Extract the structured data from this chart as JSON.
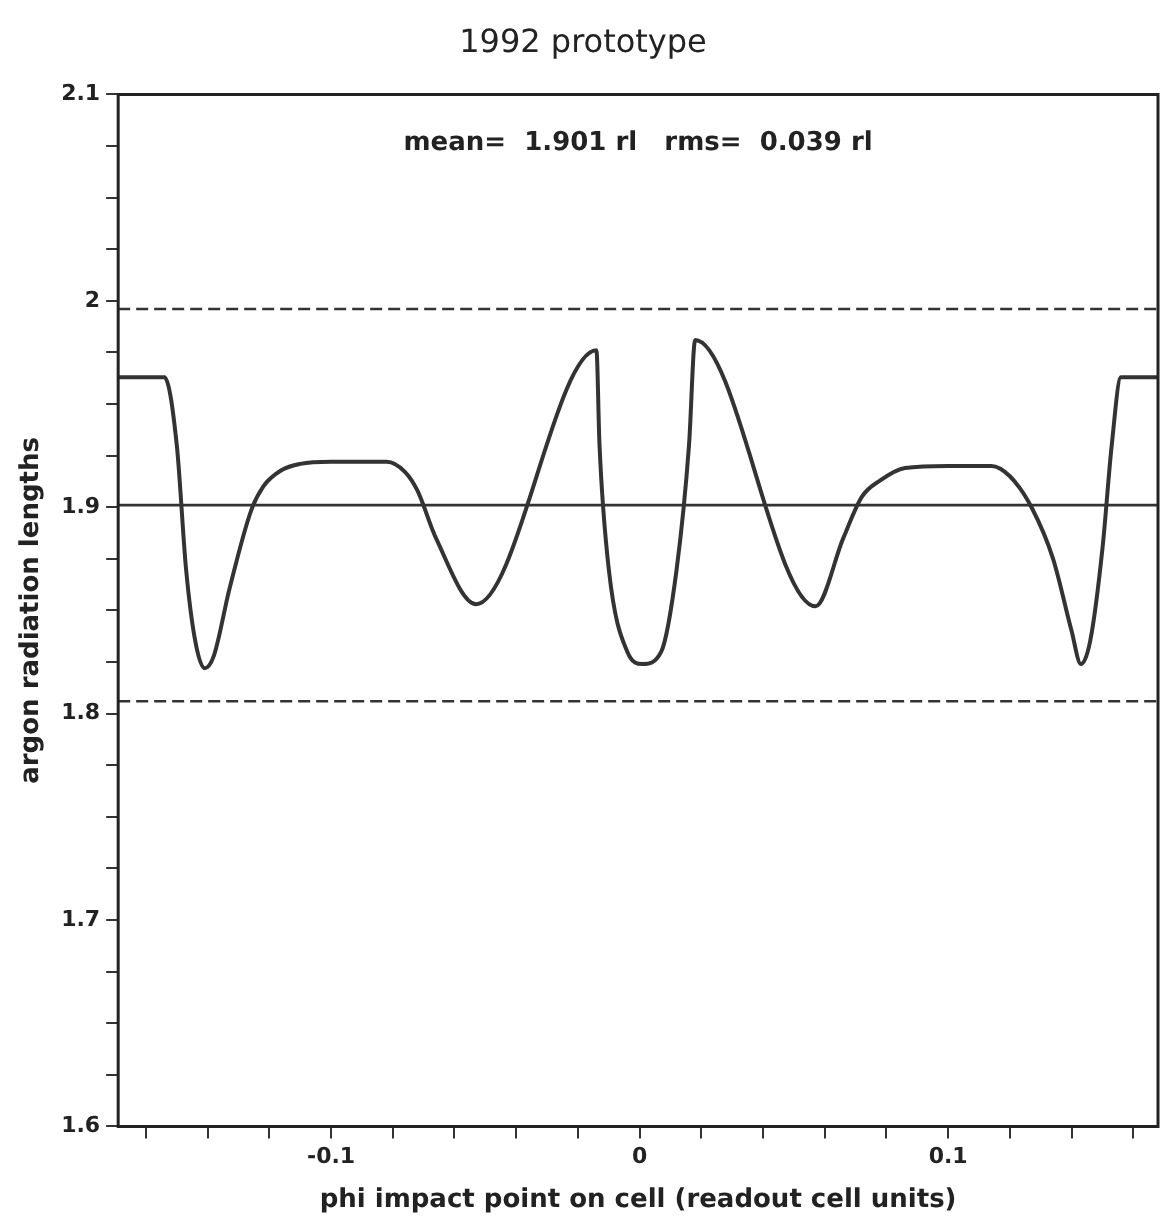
{
  "chart_data": {
    "type": "line",
    "title": "1992 prototype",
    "xlabel": "phi impact point on cell (readout cell units)",
    "ylabel": "argon radiation lengths",
    "annotations": [
      "mean=  1.901 rl   rms=  0.039 rl"
    ],
    "x": [
      -0.169,
      -0.154,
      -0.15,
      -0.147,
      -0.144,
      -0.141,
      -0.138,
      -0.133,
      -0.126,
      -0.122,
      -0.116,
      -0.11,
      -0.1,
      -0.082,
      -0.076,
      -0.072,
      -0.066,
      -0.053,
      -0.014,
      -0.013,
      -0.01,
      -0.004,
      0.001,
      0.007,
      0.012,
      0.016,
      0.018,
      0.057,
      0.066,
      0.072,
      0.078,
      0.086,
      0.1,
      0.114,
      0.12,
      0.127,
      0.134,
      0.14,
      0.143,
      0.146,
      0.15,
      0.153,
      0.156,
      0.168
    ],
    "series": [
      {
        "color": "#333333",
        "values": [
          1.963,
          1.963,
          1.93,
          1.87,
          1.835,
          1.822,
          1.828,
          1.86,
          1.898,
          1.91,
          1.918,
          1.921,
          1.922,
          1.922,
          1.917,
          1.908,
          1.885,
          1.853,
          1.976,
          1.93,
          1.87,
          1.83,
          1.824,
          1.83,
          1.87,
          1.93,
          1.981,
          1.852,
          1.885,
          1.905,
          1.913,
          1.919,
          1.92,
          1.92,
          1.915,
          1.9,
          1.875,
          1.84,
          1.824,
          1.835,
          1.88,
          1.93,
          1.963,
          1.963
        ]
      }
    ],
    "xlim": [
      -0.169,
      0.168
    ],
    "ylim": [
      1.6,
      2.1
    ],
    "xticks": [
      {
        "value": -0.16,
        "label": null
      },
      {
        "value": -0.14,
        "label": null
      },
      {
        "value": -0.12,
        "label": null
      },
      -0.1,
      {
        "value": -0.08,
        "label": null
      },
      {
        "value": -0.06,
        "label": null
      },
      {
        "value": -0.04,
        "label": null
      },
      {
        "value": -0.02,
        "label": null
      },
      0,
      {
        "value": 0.02,
        "label": null
      },
      {
        "value": 0.04,
        "label": null
      },
      {
        "value": 0.06,
        "label": null
      },
      {
        "value": 0.08,
        "label": null
      },
      0.1,
      {
        "value": 0.12,
        "label": null
      },
      {
        "value": 0.14,
        "label": null
      },
      {
        "value": 0.16,
        "label": null
      }
    ],
    "yticks": [
      1.6,
      {
        "value": 1.625,
        "label": null
      },
      {
        "value": 1.65,
        "label": null
      },
      {
        "value": 1.675,
        "label": null
      },
      1.7,
      {
        "value": 1.725,
        "label": null
      },
      {
        "value": 1.75,
        "label": null
      },
      {
        "value": 1.775,
        "label": null
      },
      1.8,
      {
        "value": 1.825,
        "label": null
      },
      {
        "value": 1.85,
        "label": null
      },
      {
        "value": 1.875,
        "label": null
      },
      1.9,
      {
        "value": 1.925,
        "label": null
      },
      {
        "value": 1.95,
        "label": null
      },
      {
        "value": 1.975,
        "label": null
      },
      2,
      {
        "value": 2.025,
        "label": null
      },
      {
        "value": 2.05,
        "label": null
      },
      {
        "value": 2.075,
        "label": null
      },
      2.1
    ],
    "ref_lines": [
      {
        "axis": "y",
        "value": 1.996,
        "line_style": "dashed"
      },
      {
        "axis": "y",
        "value": 1.901,
        "line_style": "solid"
      },
      {
        "axis": "y",
        "value": 1.806,
        "line_style": "dashed"
      }
    ],
    "grid": false,
    "legend": false,
    "marker": "none",
    "line_style": "solid"
  }
}
